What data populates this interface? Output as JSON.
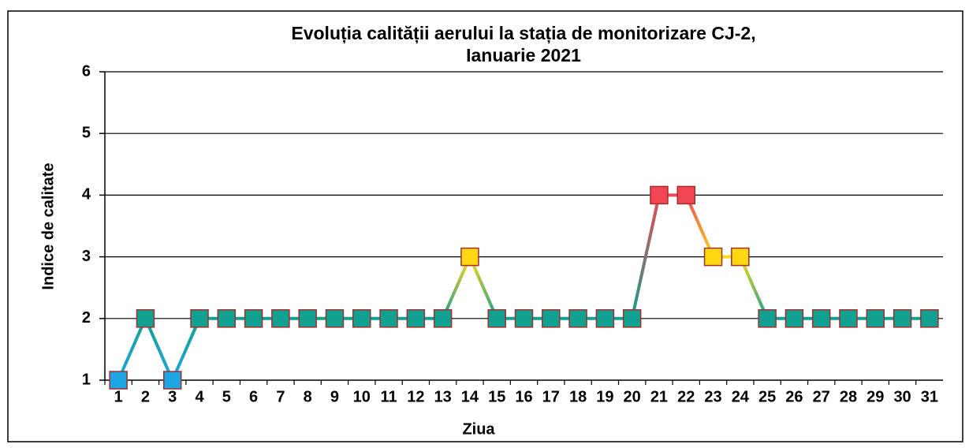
{
  "chart_data": {
    "type": "line",
    "title": [
      "Evoluția calității aerului la stația de monitorizare CJ-2,",
      "Ianuarie 2021"
    ],
    "x_label": "Ziua",
    "y_label": "Indice de calitate",
    "categories": [
      1,
      2,
      3,
      4,
      5,
      6,
      7,
      8,
      9,
      10,
      11,
      12,
      13,
      14,
      15,
      16,
      17,
      18,
      19,
      20,
      21,
      22,
      23,
      24,
      25,
      26,
      27,
      28,
      29,
      30,
      31
    ],
    "values": [
      1,
      2,
      1,
      2,
      2,
      2,
      2,
      2,
      2,
      2,
      2,
      2,
      2,
      3,
      2,
      2,
      2,
      2,
      2,
      2,
      4,
      4,
      3,
      3,
      2,
      2,
      2,
      2,
      2,
      2,
      2
    ],
    "point_colors": [
      "#1ea6e4",
      "#12a090",
      "#1ea6e4",
      "#12a090",
      "#12a090",
      "#12a090",
      "#12a090",
      "#12a090",
      "#12a090",
      "#12a090",
      "#12a090",
      "#12a090",
      "#12a090",
      "#ffd814",
      "#12a090",
      "#12a090",
      "#12a090",
      "#12a090",
      "#12a090",
      "#12a090",
      "#f24652",
      "#f24652",
      "#ffd814",
      "#ffd814",
      "#12a090",
      "#12a090",
      "#12a090",
      "#12a090",
      "#12a090",
      "#12a090",
      "#12a090"
    ],
    "ylim": [
      1,
      6
    ],
    "yticks": [
      1,
      2,
      3,
      4,
      5,
      6
    ],
    "grid": true
  }
}
